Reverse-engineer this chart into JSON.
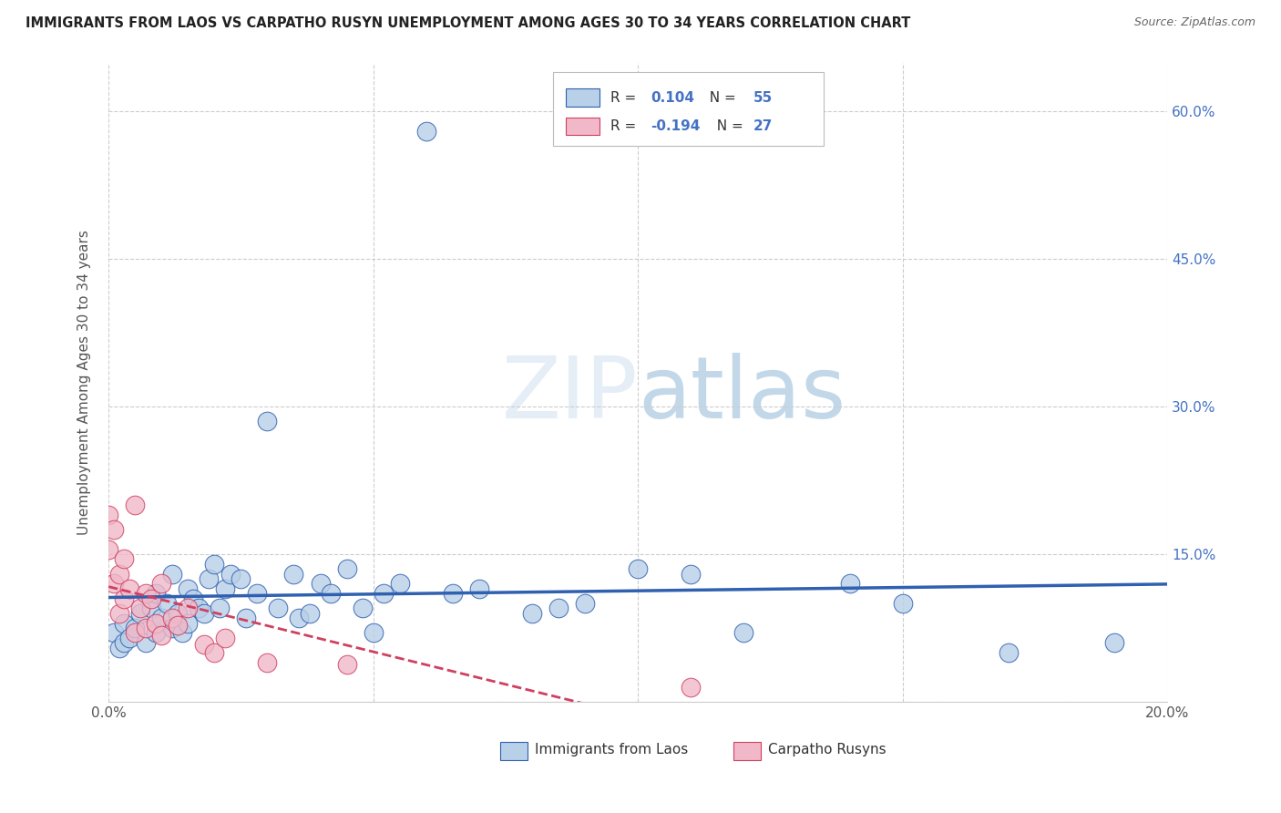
{
  "title": "IMMIGRANTS FROM LAOS VS CARPATHO RUSYN UNEMPLOYMENT AMONG AGES 30 TO 34 YEARS CORRELATION CHART",
  "source": "Source: ZipAtlas.com",
  "ylabel": "Unemployment Among Ages 30 to 34 years",
  "xlim": [
    0.0,
    0.2
  ],
  "ylim": [
    0.0,
    0.65
  ],
  "xticks": [
    0.0,
    0.05,
    0.1,
    0.15,
    0.2
  ],
  "xticklabels": [
    "0.0%",
    "",
    "",
    "",
    "20.0%"
  ],
  "yticks": [
    0.0,
    0.15,
    0.3,
    0.45,
    0.6
  ],
  "yticklabels_right": [
    "",
    "15.0%",
    "30.0%",
    "45.0%",
    "60.0%"
  ],
  "blue_R": "0.104",
  "blue_N": "55",
  "pink_R": "-0.194",
  "pink_N": "27",
  "blue_fill": "#b8d0e8",
  "pink_fill": "#f0b8c8",
  "blue_edge": "#3060b0",
  "pink_edge": "#d04060",
  "blue_line": "#3060b0",
  "pink_line": "#d04060",
  "watermark_color": "#d8e8f4",
  "blue_x": [
    0.001,
    0.002,
    0.003,
    0.003,
    0.004,
    0.005,
    0.006,
    0.007,
    0.008,
    0.009,
    0.009,
    0.01,
    0.011,
    0.012,
    0.012,
    0.013,
    0.014,
    0.015,
    0.015,
    0.016,
    0.017,
    0.018,
    0.019,
    0.02,
    0.021,
    0.022,
    0.023,
    0.025,
    0.026,
    0.028,
    0.03,
    0.032,
    0.035,
    0.036,
    0.038,
    0.04,
    0.042,
    0.045,
    0.048,
    0.05,
    0.052,
    0.055,
    0.06,
    0.065,
    0.07,
    0.08,
    0.085,
    0.09,
    0.1,
    0.11,
    0.12,
    0.14,
    0.15,
    0.17,
    0.19
  ],
  "blue_y": [
    0.07,
    0.055,
    0.08,
    0.06,
    0.065,
    0.075,
    0.09,
    0.06,
    0.095,
    0.07,
    0.11,
    0.085,
    0.1,
    0.13,
    0.075,
    0.09,
    0.07,
    0.115,
    0.08,
    0.105,
    0.095,
    0.09,
    0.125,
    0.14,
    0.095,
    0.115,
    0.13,
    0.125,
    0.085,
    0.11,
    0.285,
    0.095,
    0.13,
    0.085,
    0.09,
    0.12,
    0.11,
    0.135,
    0.095,
    0.07,
    0.11,
    0.12,
    0.58,
    0.11,
    0.115,
    0.09,
    0.095,
    0.1,
    0.135,
    0.13,
    0.07,
    0.12,
    0.1,
    0.05,
    0.06
  ],
  "pink_x": [
    0.0,
    0.0,
    0.001,
    0.001,
    0.002,
    0.002,
    0.003,
    0.003,
    0.004,
    0.005,
    0.005,
    0.006,
    0.007,
    0.007,
    0.008,
    0.009,
    0.01,
    0.01,
    0.012,
    0.013,
    0.015,
    0.018,
    0.02,
    0.022,
    0.03,
    0.045,
    0.11
  ],
  "pink_y": [
    0.19,
    0.155,
    0.175,
    0.12,
    0.13,
    0.09,
    0.145,
    0.105,
    0.115,
    0.2,
    0.07,
    0.095,
    0.11,
    0.075,
    0.105,
    0.08,
    0.12,
    0.068,
    0.085,
    0.078,
    0.095,
    0.058,
    0.05,
    0.065,
    0.04,
    0.038,
    0.015
  ]
}
